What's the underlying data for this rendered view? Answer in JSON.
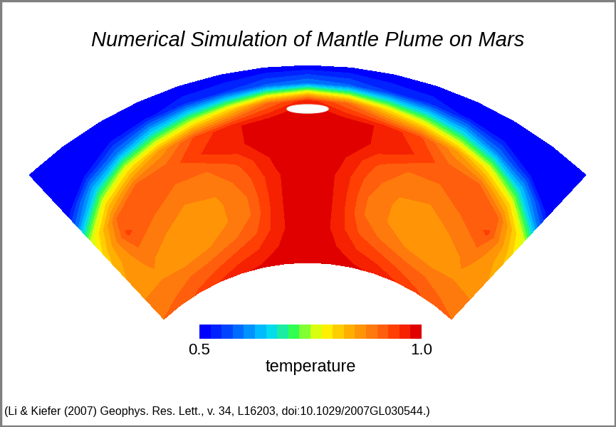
{
  "chart_data": {
    "type": "heatmap",
    "title": "Numerical Simulation of Mantle Plume on Mars",
    "annotations": [
      "(Li & Kiefer (2007) Geophys. Res. Lett., v. 34, L16203, doi:10.1029/2007GL030544.)"
    ],
    "cells": [
      [
        0.9,
        0.91,
        0.93,
        0.95,
        0.97,
        0.98,
        0.99,
        1.0,
        0.99,
        0.98,
        0.97,
        0.95,
        0.93,
        0.91,
        0.9
      ],
      [
        0.88,
        0.89,
        0.9,
        0.91,
        0.93,
        0.95,
        0.98,
        1.0,
        0.98,
        0.95,
        0.93,
        0.91,
        0.9,
        0.89,
        0.88
      ],
      [
        0.87,
        0.87,
        0.86,
        0.87,
        0.89,
        0.92,
        0.97,
        1.0,
        0.97,
        0.92,
        0.89,
        0.87,
        0.86,
        0.87,
        0.87
      ],
      [
        0.85,
        0.88,
        0.86,
        0.85,
        0.87,
        0.9,
        0.97,
        1.0,
        0.97,
        0.9,
        0.87,
        0.85,
        0.86,
        0.88,
        0.85
      ],
      [
        0.83,
        0.9,
        0.88,
        0.86,
        0.87,
        0.9,
        0.97,
        1.0,
        0.97,
        0.9,
        0.87,
        0.86,
        0.88,
        0.9,
        0.83
      ],
      [
        0.8,
        0.93,
        0.9,
        0.88,
        0.88,
        0.91,
        0.97,
        1.0,
        0.97,
        0.91,
        0.88,
        0.88,
        0.9,
        0.93,
        0.8
      ],
      [
        0.75,
        0.9,
        0.92,
        0.9,
        0.9,
        0.93,
        0.98,
        1.0,
        0.98,
        0.93,
        0.9,
        0.9,
        0.92,
        0.9,
        0.75
      ],
      [
        0.6,
        0.8,
        0.9,
        0.91,
        0.95,
        0.97,
        0.99,
        1.0,
        0.99,
        0.97,
        0.95,
        0.91,
        0.9,
        0.8,
        0.6
      ],
      [
        0.5,
        0.65,
        0.78,
        0.86,
        0.93,
        0.97,
        0.99,
        1.0,
        0.99,
        0.97,
        0.93,
        0.86,
        0.78,
        0.65,
        0.5
      ],
      [
        0.5,
        0.52,
        0.6,
        0.68,
        0.74,
        0.8,
        0.9,
        0.97,
        0.9,
        0.8,
        0.74,
        0.68,
        0.6,
        0.52,
        0.5
      ],
      [
        0.5,
        0.5,
        0.5,
        0.52,
        0.54,
        0.55,
        0.58,
        0.6,
        0.58,
        0.55,
        0.54,
        0.52,
        0.5,
        0.5,
        0.5
      ],
      [
        0.5,
        0.5,
        0.5,
        0.5,
        0.5,
        0.5,
        0.5,
        0.5,
        0.5,
        0.5,
        0.5,
        0.5,
        0.5,
        0.5,
        0.5
      ]
    ],
    "colorbar_label": "temperature",
    "colorbar_range": [
      0.5,
      1.0
    ],
    "colorbar_ticks": [
      0.5,
      {
        "value": 1.0,
        "label": "1.0"
      }
    ]
  }
}
